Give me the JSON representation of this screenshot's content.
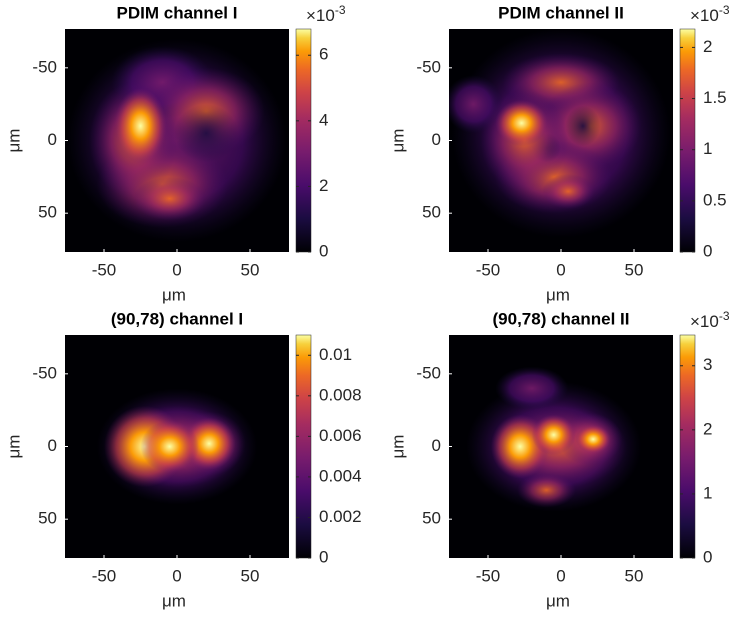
{
  "chart_data": [
    {
      "type": "heatmap",
      "title": "PDIM channel I",
      "xlabel": "μm",
      "ylabel": "μm",
      "xlim": [
        -76.7,
        76.7
      ],
      "ylim": [
        -76.7,
        76.7
      ],
      "y_reversed": true,
      "xticks": [
        -50,
        0,
        50
      ],
      "yticks": [
        -50,
        0,
        50
      ],
      "colormap": "inferno",
      "colorbar": {
        "clim": [
          0,
          0.0068
        ],
        "ticks": [
          {
            "value": 0,
            "label": "0"
          },
          {
            "value": 0.002,
            "label": "2"
          },
          {
            "value": 0.004,
            "label": "4"
          },
          {
            "value": 0.006,
            "label": "6"
          }
        ],
        "exponent_base": "×10",
        "exponent": "-3"
      }
    },
    {
      "type": "heatmap",
      "title": "PDIM channel II",
      "xlabel": "μm",
      "ylabel": "μm",
      "xlim": [
        -76.7,
        76.7
      ],
      "ylim": [
        -76.7,
        76.7
      ],
      "y_reversed": true,
      "xticks": [
        -50,
        0,
        50
      ],
      "yticks": [
        -50,
        0,
        50
      ],
      "colormap": "inferno",
      "colorbar": {
        "clim": [
          0,
          0.00218
        ],
        "ticks": [
          {
            "value": 0,
            "label": "0"
          },
          {
            "value": 0.0005,
            "label": "0.5"
          },
          {
            "value": 0.001,
            "label": "1"
          },
          {
            "value": 0.0015,
            "label": "1.5"
          },
          {
            "value": 0.002,
            "label": "2"
          }
        ],
        "exponent_base": "×10",
        "exponent": "-3"
      }
    },
    {
      "type": "heatmap",
      "title": "(90,78) channel I",
      "xlabel": "μm",
      "ylabel": "μm",
      "xlim": [
        -76.7,
        76.7
      ],
      "ylim": [
        -76.7,
        76.7
      ],
      "y_reversed": true,
      "xticks": [
        -50,
        0,
        50
      ],
      "yticks": [
        -50,
        0,
        50
      ],
      "colormap": "inferno",
      "colorbar": {
        "clim": [
          0,
          0.011
        ],
        "ticks": [
          0,
          0.002,
          0.004,
          0.006,
          0.008,
          0.01
        ]
      }
    },
    {
      "type": "heatmap",
      "title": "(90,78) channel II",
      "xlabel": "μm",
      "ylabel": "μm",
      "xlim": [
        -76.7,
        76.7
      ],
      "ylim": [
        -76.7,
        76.7
      ],
      "y_reversed": true,
      "xticks": [
        -50,
        0,
        50
      ],
      "yticks": [
        -50,
        0,
        50
      ],
      "colormap": "inferno",
      "colorbar": {
        "clim": [
          0,
          0.00348
        ],
        "ticks": [
          {
            "value": 0,
            "label": "0"
          },
          {
            "value": 0.001,
            "label": "1"
          },
          {
            "value": 0.002,
            "label": "2"
          },
          {
            "value": 0.003,
            "label": "3"
          }
        ],
        "exponent_base": "×10",
        "exponent": "-3"
      }
    }
  ]
}
